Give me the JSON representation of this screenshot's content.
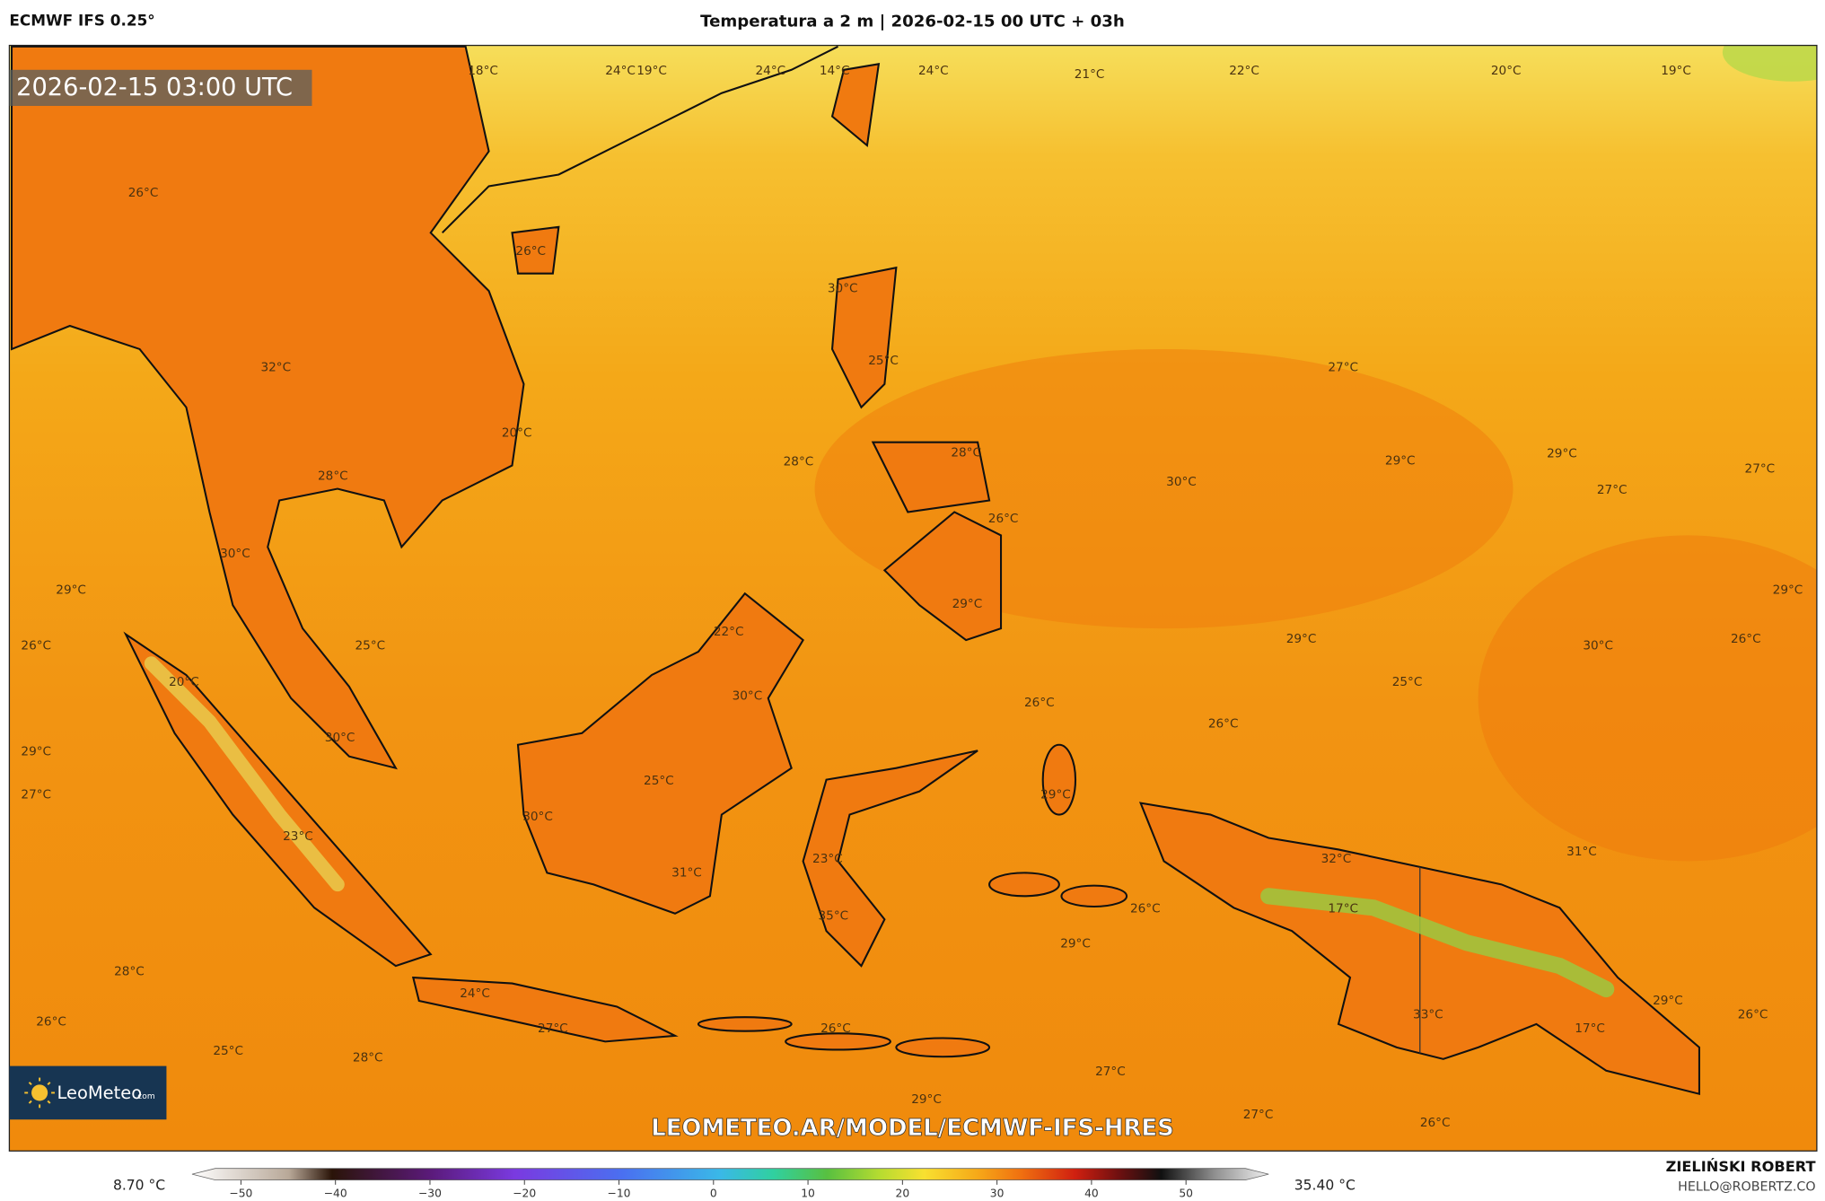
{
  "header": {
    "left": "ECMWF IFS 0.25°",
    "title": "Temperatura a 2 m | 2026-02-15 00 UTC + 03h"
  },
  "map": {
    "timestamp": "2026-02-15 03:00 UTC",
    "watermark": "LEOMETEO.AR/MODEL/ECMWF-IFS-HRES",
    "labels": [
      "18°C",
      "24°C",
      "19°C",
      "24°C",
      "14°C",
      "24°C",
      "21°C",
      "22°C",
      "20°C",
      "19°C",
      "26°C",
      "26°C",
      "30°C",
      "25°C",
      "32°C",
      "27°C",
      "20°C",
      "28°C",
      "28°C",
      "28°C",
      "29°C",
      "29°C",
      "30°C",
      "27°C",
      "27°C",
      "26°C",
      "30°C",
      "29°C",
      "29°C",
      "29°C",
      "22°C",
      "26°C",
      "25°C",
      "29°C",
      "30°C",
      "26°C",
      "20°C",
      "25°C",
      "30°C",
      "26°C",
      "26°C",
      "30°C",
      "29°C",
      "25°C",
      "29°C",
      "27°C",
      "30°C",
      "23°C",
      "31°C",
      "32°C",
      "23°C",
      "31°C",
      "17°C",
      "26°C",
      "35°C",
      "29°C",
      "28°C",
      "24°C",
      "29°C",
      "33°C",
      "26°C",
      "26°C",
      "27°C",
      "26°C",
      "17°C",
      "25°C",
      "28°C",
      "27°C",
      "29°C",
      "27°C",
      "26°C"
    ]
  },
  "logo": {
    "name": "LeoMeteo",
    "suffix": ".com"
  },
  "colorbar": {
    "min_label": "8.70 °C",
    "max_label": "35.40 °C",
    "ticks": [
      {
        "value": -50,
        "label": "−50"
      },
      {
        "value": -40,
        "label": "−40"
      },
      {
        "value": -30,
        "label": "−30"
      },
      {
        "value": -20,
        "label": "−20"
      },
      {
        "value": -10,
        "label": "−10"
      },
      0,
      10,
      20,
      30,
      40,
      50
    ]
  },
  "footer": {
    "author": "ZIELIŃSKI ROBERT",
    "email": "HELLO@ROBERTZ.CO"
  }
}
